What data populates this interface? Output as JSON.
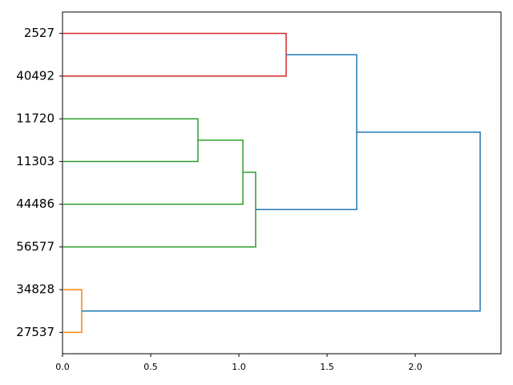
{
  "chart_data": {
    "type": "dendrogram",
    "orientation": "right",
    "categories": [
      "2527",
      "40492",
      "11720",
      "11303",
      "44486",
      "56577",
      "34828",
      "27537"
    ],
    "merges": [
      {
        "left": 0,
        "right": 1,
        "height": 1.268,
        "color": "#d62728"
      },
      {
        "left": 2,
        "right": 3,
        "height": 0.768,
        "color": "#2ca02c"
      },
      {
        "left": 9,
        "right": 4,
        "height": 1.023,
        "color": "#2ca02c"
      },
      {
        "left": 10,
        "right": 5,
        "height": 1.095,
        "color": "#2ca02c"
      },
      {
        "left": 8,
        "right": 11,
        "height": 1.668,
        "color": "#1f77b4"
      },
      {
        "left": 6,
        "right": 7,
        "height": 0.109,
        "color": "#ff7f0e"
      },
      {
        "left": 12,
        "right": 13,
        "height": 2.368,
        "color": "#1f77b4"
      }
    ],
    "xlim": [
      0,
      2.486
    ],
    "xticks": [
      {
        "value": 0,
        "label": "0.0"
      },
      {
        "value": 0.5,
        "label": "0.5"
      },
      {
        "value": 1,
        "label": "1.0"
      },
      {
        "value": 1.5,
        "label": "1.5"
      },
      {
        "value": 2,
        "label": "2.0"
      }
    ]
  }
}
